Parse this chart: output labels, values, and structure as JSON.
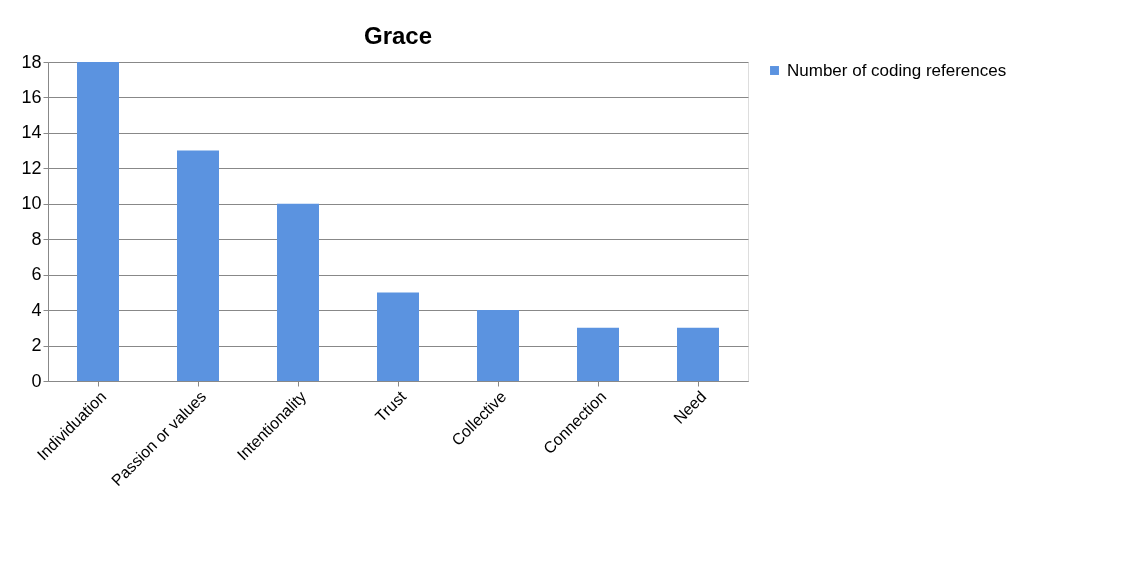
{
  "chart_data": {
    "type": "bar",
    "title": "Grace",
    "categories": [
      "Individuation",
      "Passion or values",
      "Intentionality",
      "Trust",
      "Collective",
      "Connection",
      "Need"
    ],
    "series": [
      {
        "name": "Number of coding references",
        "color": "#5b93e0",
        "values": [
          18,
          13,
          10,
          5,
          4,
          3,
          3
        ]
      }
    ],
    "ylim": [
      0,
      18
    ],
    "yticks": [
      0,
      2,
      4,
      6,
      8,
      10,
      12,
      14,
      16,
      18
    ],
    "grid": "y",
    "legend": "right"
  }
}
